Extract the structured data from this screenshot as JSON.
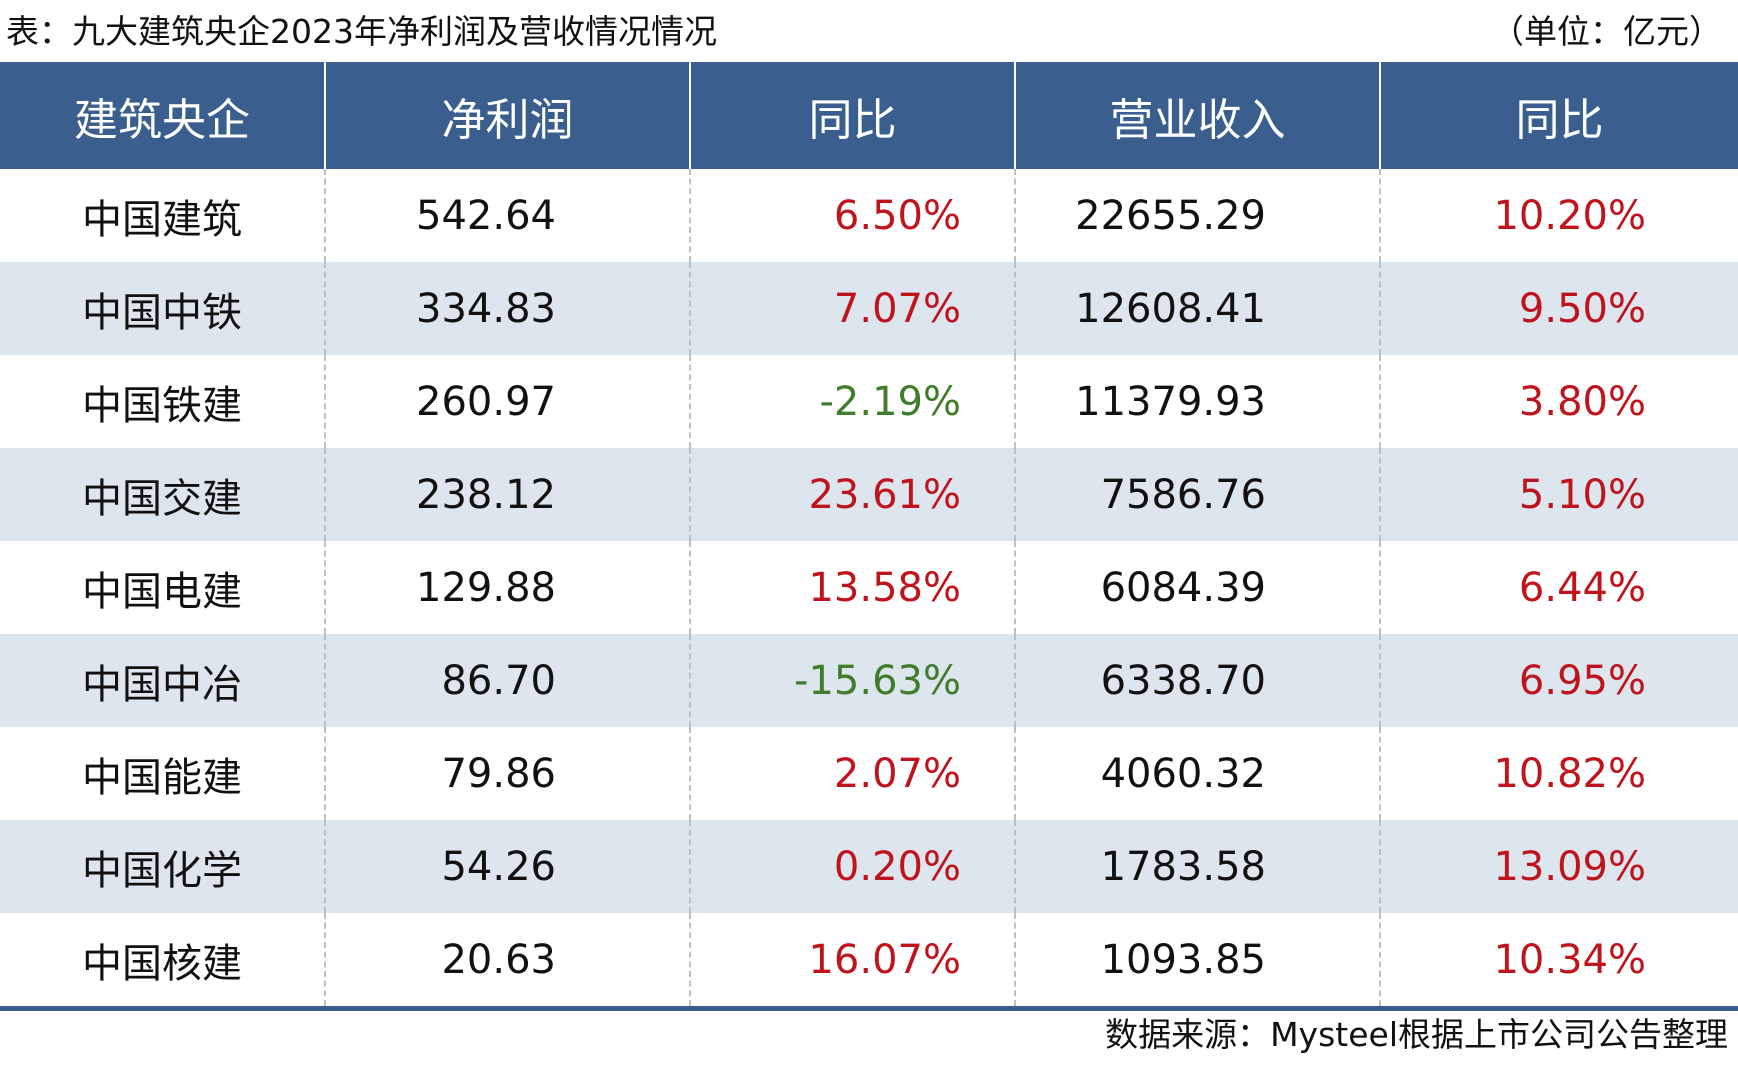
{
  "caption": {
    "title": "表：九大建筑央企2023年净利润及营收情况情况",
    "unit": "（单位：亿元）"
  },
  "colors": {
    "header_bg": "#3a5f8e",
    "stripe_bg": "#dde5ef",
    "positive": "#c0141c",
    "negative": "#3f7d2a"
  },
  "source": "数据来源：Mysteel根据上市公司公告整理",
  "chart_data": {
    "type": "table",
    "columns": [
      "建筑央企",
      "净利润",
      "同比",
      "营业收入",
      "同比"
    ],
    "rows": [
      [
        "中国建筑",
        "542.64",
        "6.50%",
        "22655.29",
        "10.20%"
      ],
      [
        "中国中铁",
        "334.83",
        "7.07%",
        "12608.41",
        "9.50%"
      ],
      [
        "中国铁建",
        "260.97",
        "-2.19%",
        "11379.93",
        "3.80%"
      ],
      [
        "中国交建",
        "238.12",
        "23.61%",
        "7586.76",
        "5.10%"
      ],
      [
        "中国电建",
        "129.88",
        "13.58%",
        "6084.39",
        "6.44%"
      ],
      [
        "中国中冶",
        "86.70",
        "-15.63%",
        "6338.70",
        "6.95%"
      ],
      [
        "中国能建",
        "79.86",
        "2.07%",
        "4060.32",
        "10.82%"
      ],
      [
        "中国化学",
        "54.26",
        "0.20%",
        "1783.58",
        "13.09%"
      ],
      [
        "中国核建",
        "20.63",
        "16.07%",
        "1093.85",
        "10.34%"
      ]
    ]
  }
}
